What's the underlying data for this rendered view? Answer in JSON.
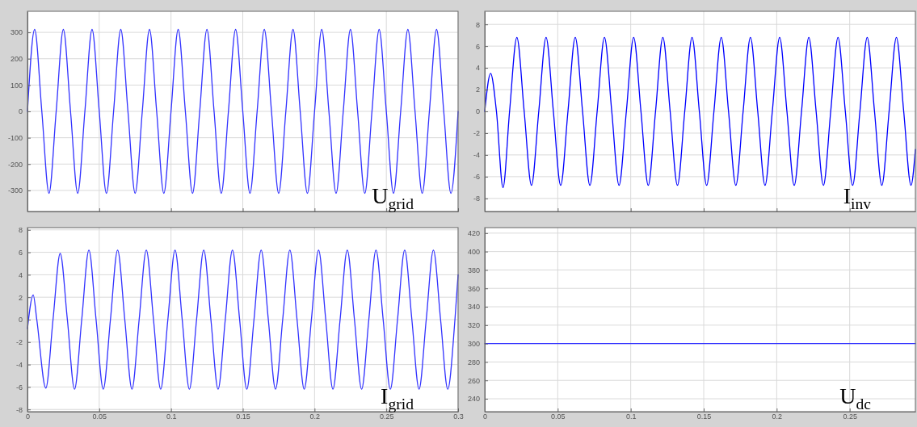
{
  "chart_data": [
    {
      "type": "line",
      "annotations": [
        "U$_{grid}$"
      ],
      "xlim": [
        0,
        0.3
      ],
      "xticks": [
        0,
        0.05,
        0.1,
        0.15,
        0.2,
        0.25,
        0.3
      ],
      "ylim": [
        -380,
        380
      ],
      "yticks": [
        -300,
        -200,
        -100,
        0,
        100,
        200,
        300
      ],
      "grid": true,
      "tick_labels": "y",
      "series": [
        {
          "color": "#3333ff",
          "x": [
            0,
            0.005,
            0.01,
            0.015,
            0.02,
            0.025,
            0.03,
            0.035,
            0.04,
            0.045,
            0.05,
            0.055,
            0.06,
            0.065,
            0.07,
            0.075,
            0.08,
            0.085,
            0.09,
            0.095,
            0.1,
            0.105,
            0.11,
            0.115,
            0.12,
            0.125,
            0.13,
            0.135,
            0.14,
            0.145,
            0.15,
            0.155,
            0.16,
            0.165,
            0.17,
            0.175,
            0.18,
            0.185,
            0.19,
            0.195,
            0.2,
            0.205,
            0.21,
            0.215,
            0.22,
            0.225,
            0.23,
            0.235,
            0.24,
            0.245,
            0.25,
            0.255,
            0.26,
            0.265,
            0.27,
            0.275,
            0.28,
            0.285,
            0.29,
            0.295,
            0.3
          ],
          "values": [
            0,
            311,
            0,
            -311,
            0,
            311,
            0,
            -311,
            0,
            311,
            0,
            -311,
            0,
            311,
            0,
            -311,
            0,
            311,
            0,
            -311,
            0,
            311,
            0,
            -311,
            0,
            311,
            0,
            -311,
            0,
            311,
            0,
            -311,
            0,
            311,
            0,
            -311,
            0,
            311,
            0,
            -311,
            0,
            311,
            0,
            -311,
            0,
            311,
            0,
            -311,
            0,
            311,
            0,
            -311,
            0,
            311,
            0,
            -311,
            0,
            311,
            0,
            -311,
            0
          ]
        }
      ]
    },
    {
      "type": "line",
      "annotations": [
        "I$_{inv}$"
      ],
      "xlim": [
        0,
        0.295
      ],
      "xticks": [
        0,
        0.05,
        0.1,
        0.15,
        0.2,
        0.25
      ],
      "ylim": [
        -9.2,
        9.2
      ],
      "yticks": [
        -8,
        -6,
        -4,
        -2,
        0,
        2,
        4,
        6,
        8
      ],
      "grid": true,
      "tick_labels": "y",
      "series": [
        {
          "color": "#0000ff",
          "x": [
            0,
            0.004,
            0.008,
            0.0125,
            0.017,
            0.022,
            0.027,
            0.032,
            0.037,
            0.042,
            0.047,
            0.052,
            0.057,
            0.062,
            0.067,
            0.072,
            0.077,
            0.082,
            0.087,
            0.092,
            0.097,
            0.102,
            0.107,
            0.112,
            0.117,
            0.122,
            0.127,
            0.132,
            0.137,
            0.142,
            0.147,
            0.152,
            0.157,
            0.162,
            0.167,
            0.172,
            0.177,
            0.182,
            0.187,
            0.192,
            0.197,
            0.202,
            0.207,
            0.212,
            0.217,
            0.222,
            0.227,
            0.232,
            0.237,
            0.242,
            0.247,
            0.252,
            0.257,
            0.262,
            0.267,
            0.272,
            0.277,
            0.282,
            0.287,
            0.292,
            0.295
          ],
          "values": [
            0,
            3.5,
            0,
            -7,
            0,
            6.8,
            0,
            -6.8,
            0,
            6.8,
            0,
            -6.8,
            0,
            6.8,
            0,
            -6.8,
            0,
            6.8,
            0,
            -6.8,
            0,
            6.8,
            0,
            -6.8,
            0,
            6.8,
            0,
            -6.8,
            0,
            6.8,
            0,
            -6.8,
            0,
            6.8,
            0,
            -6.8,
            0,
            6.8,
            0,
            -6.8,
            0,
            6.8,
            0,
            -6.8,
            0,
            6.8,
            0,
            -6.8,
            0,
            6.8,
            0,
            -6.8,
            0,
            6.8,
            0,
            -6.8,
            0,
            6.8,
            0,
            -6.8,
            -3.5
          ]
        }
      ]
    },
    {
      "type": "line",
      "annotations": [
        "I$_{grid}$"
      ],
      "xlim": [
        0,
        0.3
      ],
      "xticks": [
        0,
        0.05,
        0.1,
        0.15,
        0.2,
        0.25,
        0.3
      ],
      "ylim": [
        -8.2,
        8.2
      ],
      "yticks": [
        -8,
        -6,
        -4,
        -2,
        0,
        2,
        4,
        6,
        8
      ],
      "grid": true,
      "series": [
        {
          "color": "#3333ff",
          "x": [
            0,
            0.004,
            0.0065,
            0.0128,
            0.0178,
            0.0228,
            0.0278,
            0.0328,
            0.0378,
            0.0428,
            0.0478,
            0.0528,
            0.0578,
            0.0628,
            0.0678,
            0.0728,
            0.0778,
            0.0828,
            0.0878,
            0.0928,
            0.0978,
            0.1028,
            0.1078,
            0.1128,
            0.1178,
            0.1228,
            0.1278,
            0.1328,
            0.1378,
            0.1428,
            0.1478,
            0.1528,
            0.1578,
            0.1628,
            0.1678,
            0.1728,
            0.1778,
            0.1828,
            0.1878,
            0.1928,
            0.1978,
            0.2028,
            0.2078,
            0.2128,
            0.2178,
            0.2228,
            0.2278,
            0.2328,
            0.2378,
            0.2428,
            0.2478,
            0.2528,
            0.2578,
            0.2628,
            0.2678,
            0.2728,
            0.2778,
            0.2828,
            0.2878,
            0.2928,
            0.2978,
            0.3
          ],
          "values": [
            -0.8,
            2.2,
            0,
            -6.1,
            0,
            5.9,
            0,
            -6.2,
            0,
            6.2,
            0,
            -6.2,
            0,
            6.2,
            0,
            -6.2,
            0,
            6.2,
            0,
            -6.2,
            0,
            6.2,
            0,
            -6.2,
            0,
            6.2,
            0,
            -6.2,
            0,
            6.2,
            0,
            -6.2,
            0,
            6.2,
            0,
            -6.2,
            0,
            6.2,
            0,
            -6.2,
            0,
            6.2,
            0,
            -6.2,
            0,
            6.2,
            0,
            -6.2,
            0,
            6.2,
            0,
            -6.2,
            0,
            6.2,
            0,
            -6.2,
            0,
            6.2,
            0,
            -6.2,
            0,
            4
          ]
        }
      ]
    },
    {
      "type": "line",
      "annotations": [
        "U$_{dc}$"
      ],
      "xlim": [
        0,
        0.295
      ],
      "xticks": [
        0,
        0.05,
        0.1,
        0.15,
        0.2,
        0.25
      ],
      "ylim": [
        226,
        426
      ],
      "yticks": [
        240,
        260,
        280,
        300,
        320,
        340,
        360,
        380,
        400,
        420
      ],
      "grid": true,
      "series": [
        {
          "color": "#3333ff",
          "x": [
            0,
            0.295
          ],
          "values": [
            300,
            300
          ]
        }
      ]
    }
  ]
}
